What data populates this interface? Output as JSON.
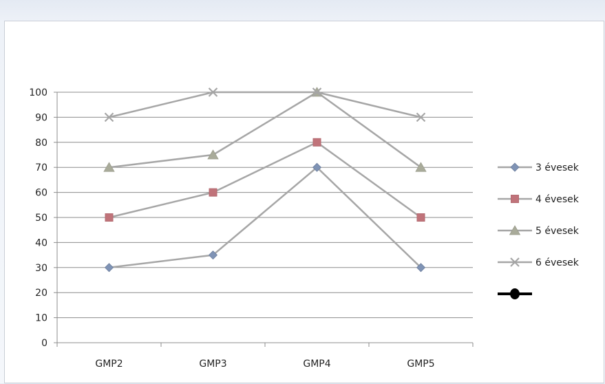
{
  "chart_data": {
    "type": "line",
    "title": "",
    "xlabel": "",
    "ylabel": "",
    "categories": [
      "GMP2",
      "GMP3",
      "GMP4",
      "GMP5"
    ],
    "ylim": [
      0,
      100
    ],
    "yticks": [
      0,
      10,
      20,
      30,
      40,
      50,
      60,
      70,
      80,
      90,
      100
    ],
    "grid": true,
    "legend_position": "right",
    "series": [
      {
        "name": "3 évesek",
        "values": [
          30,
          35,
          70,
          30
        ],
        "marker": "diamond",
        "marker_color": "#7f93b5"
      },
      {
        "name": "4 évesek",
        "values": [
          50,
          60,
          80,
          50
        ],
        "marker": "square",
        "marker_color": "#c0737a"
      },
      {
        "name": "5 évesek",
        "values": [
          70,
          75,
          100,
          70
        ],
        "marker": "triangle",
        "marker_color": "#a9ab9a"
      },
      {
        "name": "6 évesek",
        "values": [
          90,
          100,
          100,
          90
        ],
        "marker": "x",
        "marker_color": "#a5a5a5"
      }
    ],
    "line_color": "#a6a6a6",
    "extra_legend_marker_color": "#000000"
  }
}
